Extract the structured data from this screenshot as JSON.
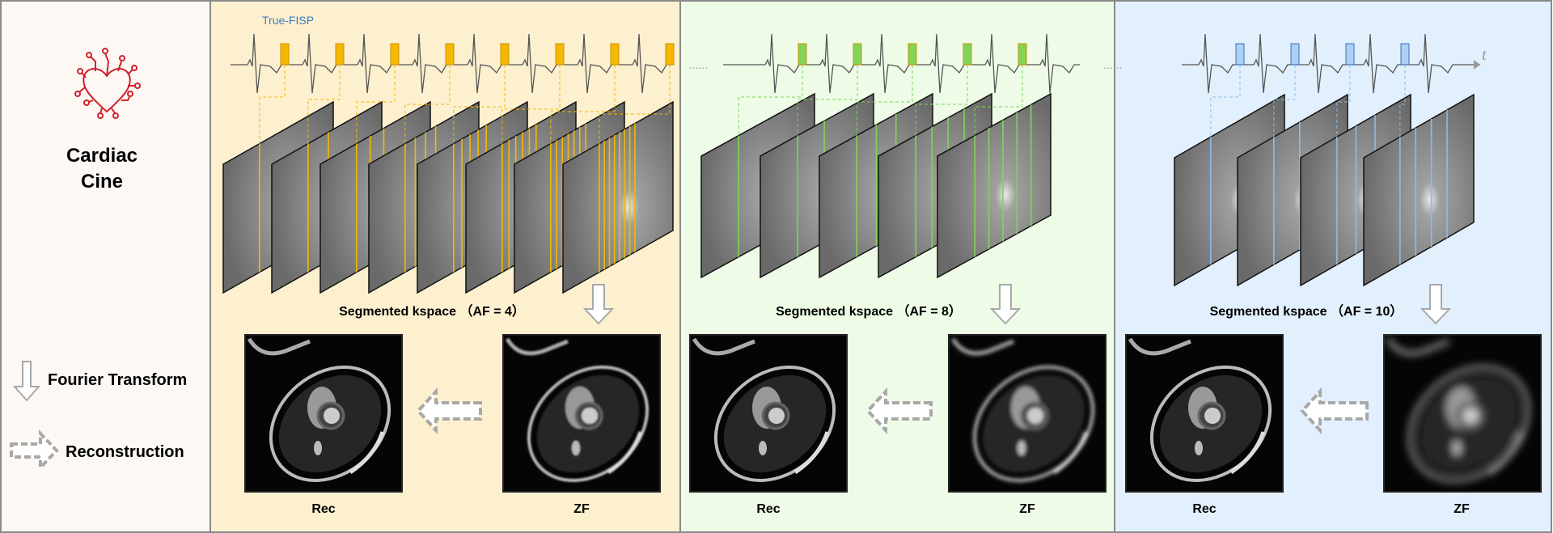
{
  "left_panel": {
    "title_line1": "Cardiac",
    "title_line2": "Cine",
    "icon": "heart-circuit-icon",
    "legend": [
      {
        "icon": "down-arrow-icon",
        "label": "Fourier Transform"
      },
      {
        "icon": "dashed-right-arrow-icon",
        "label": "Reconstruction"
      }
    ],
    "background": "#fdf8f4",
    "heart_color": "#d0202a"
  },
  "sequence_label": "True-FISP",
  "time_axis_label": "t",
  "panels": [
    {
      "id": "af4",
      "kspace_label": "Segmented kspace （AF = 4）",
      "rec_label": "Rec",
      "zf_label": "ZF",
      "background": "#fdf0cf",
      "accent": "#f5b800",
      "frames": 8,
      "zf_blur": 1
    },
    {
      "id": "af8",
      "kspace_label": "Segmented kspace （AF = 8）",
      "rec_label": "Rec",
      "zf_label": "ZF",
      "background": "#eefbe6",
      "accent": "#7fd45a",
      "frames": 5,
      "zf_blur": 2.5
    },
    {
      "id": "af10",
      "kspace_label": "Segmented kspace （AF = 10）",
      "rec_label": "Rec",
      "zf_label": "ZF",
      "background": "#e2f0fd",
      "accent": "#8bbcec",
      "frames": 4,
      "zf_blur": 5
    }
  ]
}
